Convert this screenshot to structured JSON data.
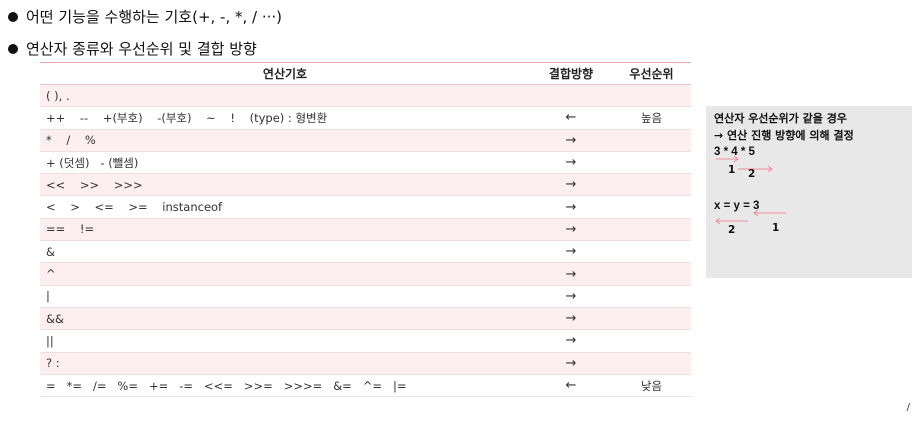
{
  "bullets": [
    "어떤 기능을 수행하는 기호(+, -, *, / ···)",
    "연산자 종류와 우선순위 및 결합 방향"
  ],
  "table": {
    "headers": [
      "연산기호",
      "결합방향",
      "우선순위"
    ],
    "rows": [
      {
        "ops": "( ), .",
        "dir": "",
        "prec": ""
      },
      {
        "ops": "++    --    +(부호)    -(부호)    ~    !    (type) : 형변환",
        "dir": "←",
        "prec": "높음"
      },
      {
        "ops": "*    /    %",
        "dir": "→",
        "prec": ""
      },
      {
        "ops": "+ (덧셈)   - (뺄셈)",
        "dir": "→",
        "prec": ""
      },
      {
        "ops": "<<    >>    >>>",
        "dir": "→",
        "prec": ""
      },
      {
        "ops": "<    >    <=    >=    instanceof",
        "dir": "→",
        "prec": ""
      },
      {
        "ops": "==    !=",
        "dir": "→",
        "prec": ""
      },
      {
        "ops": "&",
        "dir": "→",
        "prec": ""
      },
      {
        "ops": "^",
        "dir": "→",
        "prec": ""
      },
      {
        "ops": "|",
        "dir": "→",
        "prec": ""
      },
      {
        "ops": "&&",
        "dir": "→",
        "prec": ""
      },
      {
        "ops": "||",
        "dir": "→",
        "prec": ""
      },
      {
        "ops": "? :",
        "dir": "→",
        "prec": ""
      },
      {
        "ops": "=   *=   /=   %=   +=   -=   <<=   >>=   >>>=   &=   ^=   |=",
        "dir": "←",
        "prec": "낮음"
      }
    ]
  },
  "side_note": {
    "line1": "연산자 우선순위가 같을 경우",
    "line2": "→  연산 진행 방향에 의해 결정",
    "example1": {
      "expr": "3 * 4 * 5",
      "order_first": "1",
      "order_second": "2"
    },
    "example2": {
      "expr": "x = y = 3",
      "order_first": "2",
      "order_second": "1"
    },
    "arrow_color": "#f08c96"
  },
  "corner_mark": "/"
}
